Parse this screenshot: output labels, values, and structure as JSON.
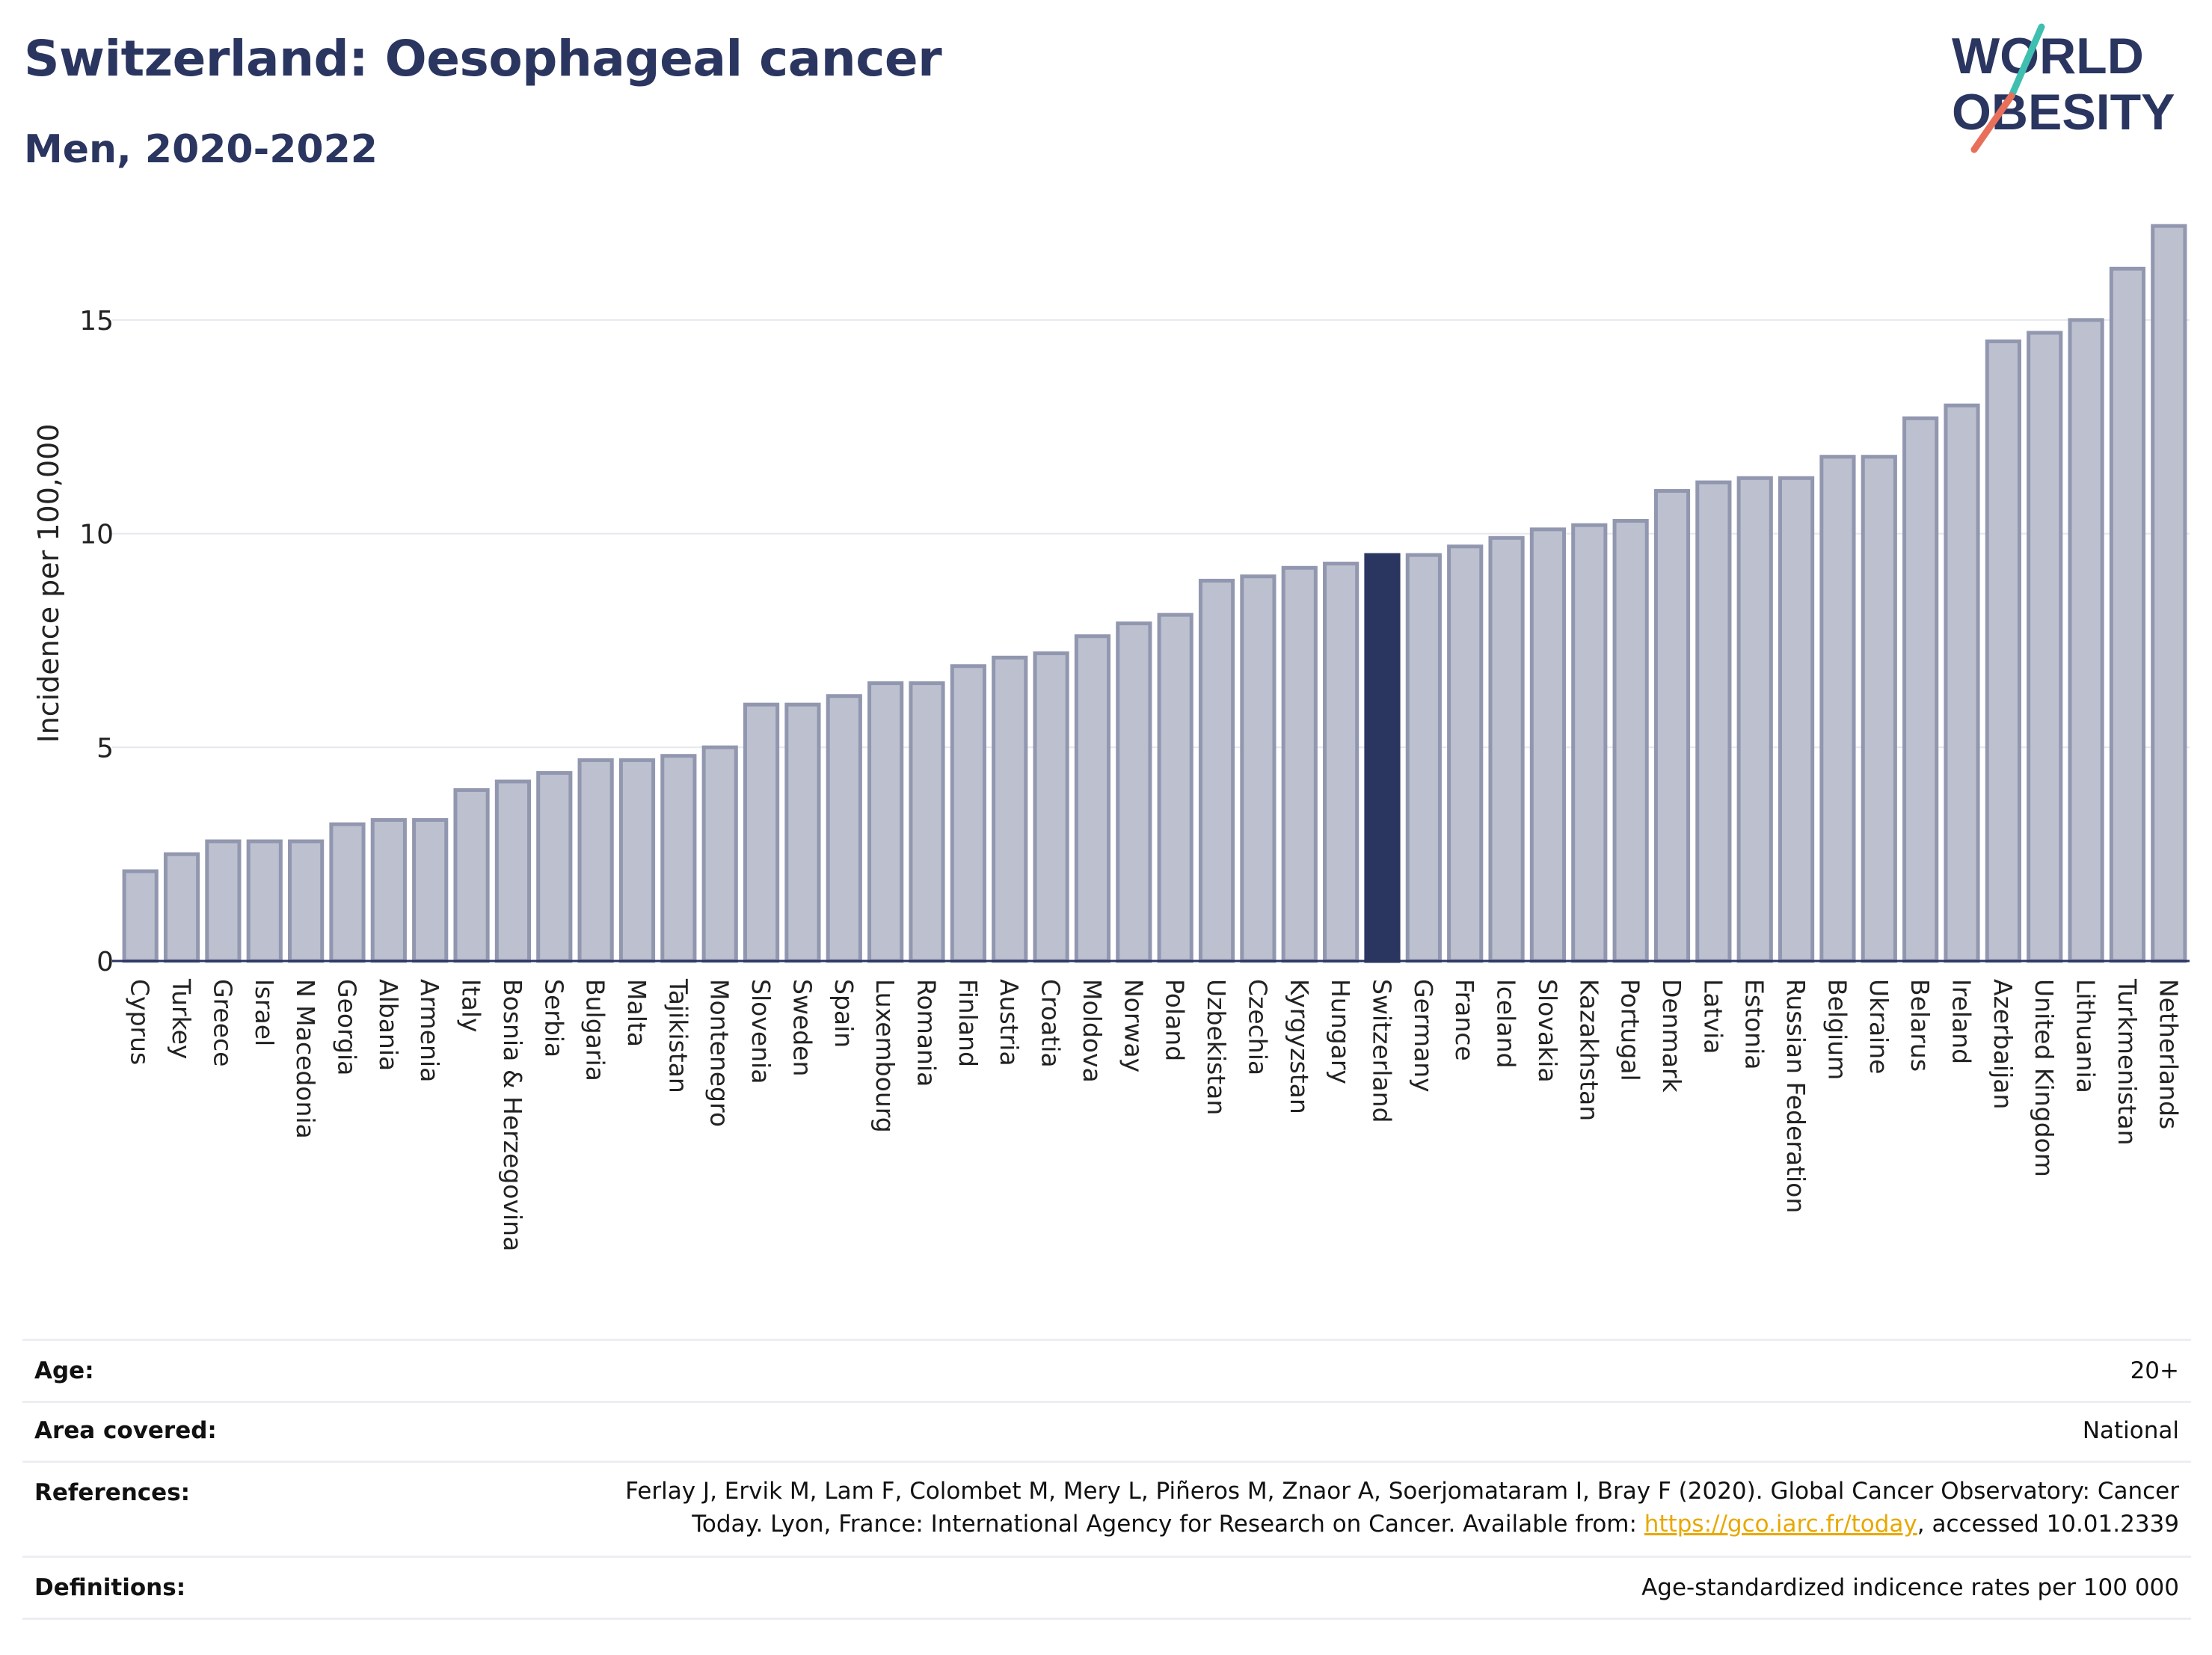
{
  "header": {
    "title": "Switzerland: Oesophageal cancer",
    "subtitle": "Men, 2020-2022",
    "logo_line1": "WORLD",
    "logo_line2": "OBESITY"
  },
  "colors": {
    "title": "#2a3560",
    "bar_default": "#bdc0ce",
    "bar_default_stroke": "#9297b0",
    "bar_highlight": "#2a3560",
    "link": "#e8a800"
  },
  "chart_data": {
    "type": "bar",
    "ylabel": "Incidence per 100,000",
    "xlabel": "",
    "ylim": [
      0,
      17.5
    ],
    "yticks": [
      0,
      5,
      10,
      15
    ],
    "grid": true,
    "highlight": "Switzerland",
    "categories": [
      "Cyprus",
      "Turkey",
      "Greece",
      "Israel",
      "N Macedonia",
      "Georgia",
      "Albania",
      "Armenia",
      "Italy",
      "Bosnia & Herzegovina",
      "Serbia",
      "Bulgaria",
      "Malta",
      "Tajikistan",
      "Montenegro",
      "Slovenia",
      "Sweden",
      "Spain",
      "Luxembourg",
      "Romania",
      "Finland",
      "Austria",
      "Croatia",
      "Moldova",
      "Norway",
      "Poland",
      "Uzbekistan",
      "Czechia",
      "Kyrgyzstan",
      "Hungary",
      "Switzerland",
      "Germany",
      "France",
      "Iceland",
      "Slovakia",
      "Kazakhstan",
      "Portugal",
      "Denmark",
      "Latvia",
      "Estonia",
      "Russian Federation",
      "Belgium",
      "Ukraine",
      "Belarus",
      "Ireland",
      "Azerbaijan",
      "United Kingdom",
      "Lithuania",
      "Turkmenistan",
      "Netherlands"
    ],
    "values": [
      2.1,
      2.5,
      2.8,
      2.8,
      2.8,
      3.2,
      3.3,
      3.3,
      4.0,
      4.2,
      4.4,
      4.7,
      4.7,
      4.8,
      5.0,
      6.0,
      6.0,
      6.2,
      6.5,
      6.5,
      6.9,
      7.1,
      7.2,
      7.6,
      7.9,
      8.1,
      8.9,
      9.0,
      9.2,
      9.3,
      9.5,
      9.5,
      9.7,
      9.9,
      10.1,
      10.2,
      10.3,
      11.0,
      11.2,
      11.3,
      11.3,
      11.8,
      11.8,
      12.7,
      13.0,
      14.5,
      14.7,
      15.0,
      16.2,
      17.2
    ]
  },
  "info": {
    "age_label": "Age:",
    "age_value": "20+",
    "area_label": "Area covered:",
    "area_value": "National",
    "references_label": "References:",
    "references_line1": "Ferlay J, Ervik M, Lam F, Colombet M, Mery L, Piñeros M, Znaor A, Soerjomataram I, Bray F (2020). Global Cancer Observatory: Cancer",
    "references_line2_pre": "Today. Lyon, France: International Agency for Research on Cancer. Available from: ",
    "references_link": "https://gco.iarc.fr/today",
    "references_line2_post": ", accessed 10.01.2339",
    "definitions_label": "Definitions:",
    "definitions_value": "Age-standardized indicence rates per 100 000"
  }
}
